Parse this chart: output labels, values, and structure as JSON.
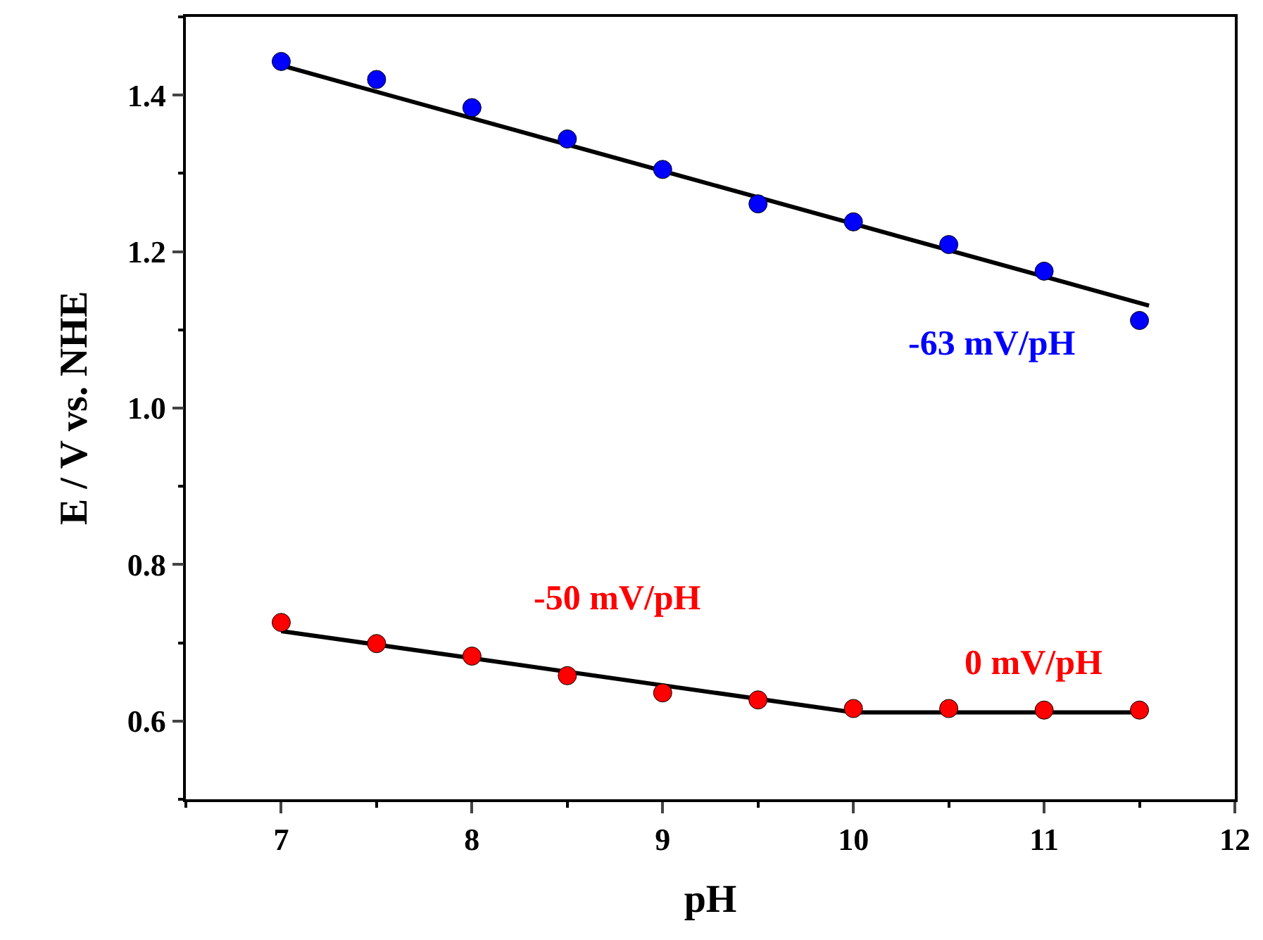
{
  "chart_data": {
    "type": "scatter",
    "xlabel": "pH",
    "ylabel": "E / V vs. NHE",
    "x": [
      7,
      7.5,
      8,
      8.5,
      9,
      9.5,
      10,
      10.5,
      11,
      11.5
    ],
    "series": [
      {
        "color": "#0000ff",
        "marker": "circle",
        "values": [
          1.443,
          1.42,
          1.384,
          1.344,
          1.305,
          1.261,
          1.238,
          1.209,
          1.175,
          1.112
        ]
      },
      {
        "color": "#ff0000",
        "marker": "circle",
        "values": [
          0.726,
          0.699,
          0.683,
          0.658,
          0.636,
          0.627,
          0.616,
          0.616,
          0.614,
          0.614
        ]
      },
      {
        "type": "line",
        "color": "#000000",
        "x": [
          7,
          11.55
        ],
        "values": [
          1.438,
          1.131
        ]
      },
      {
        "type": "line",
        "color": "#000000",
        "x": [
          7,
          10,
          11.5
        ],
        "values": [
          0.715,
          0.611,
          0.611
        ]
      }
    ],
    "xlim": [
      6.5,
      12
    ],
    "xticks": [
      7,
      8,
      9,
      10,
      11,
      12
    ],
    "ylim": [
      0.5,
      1.5
    ],
    "yticks": [
      0.6,
      0.8,
      {
        "value": 1,
        "label": "1.0"
      },
      1.2,
      1.4
    ],
    "annotations": [
      "-63 mV/pH",
      "-50 mV/pH",
      "0 mV/pH"
    ],
    "grid": false
  }
}
